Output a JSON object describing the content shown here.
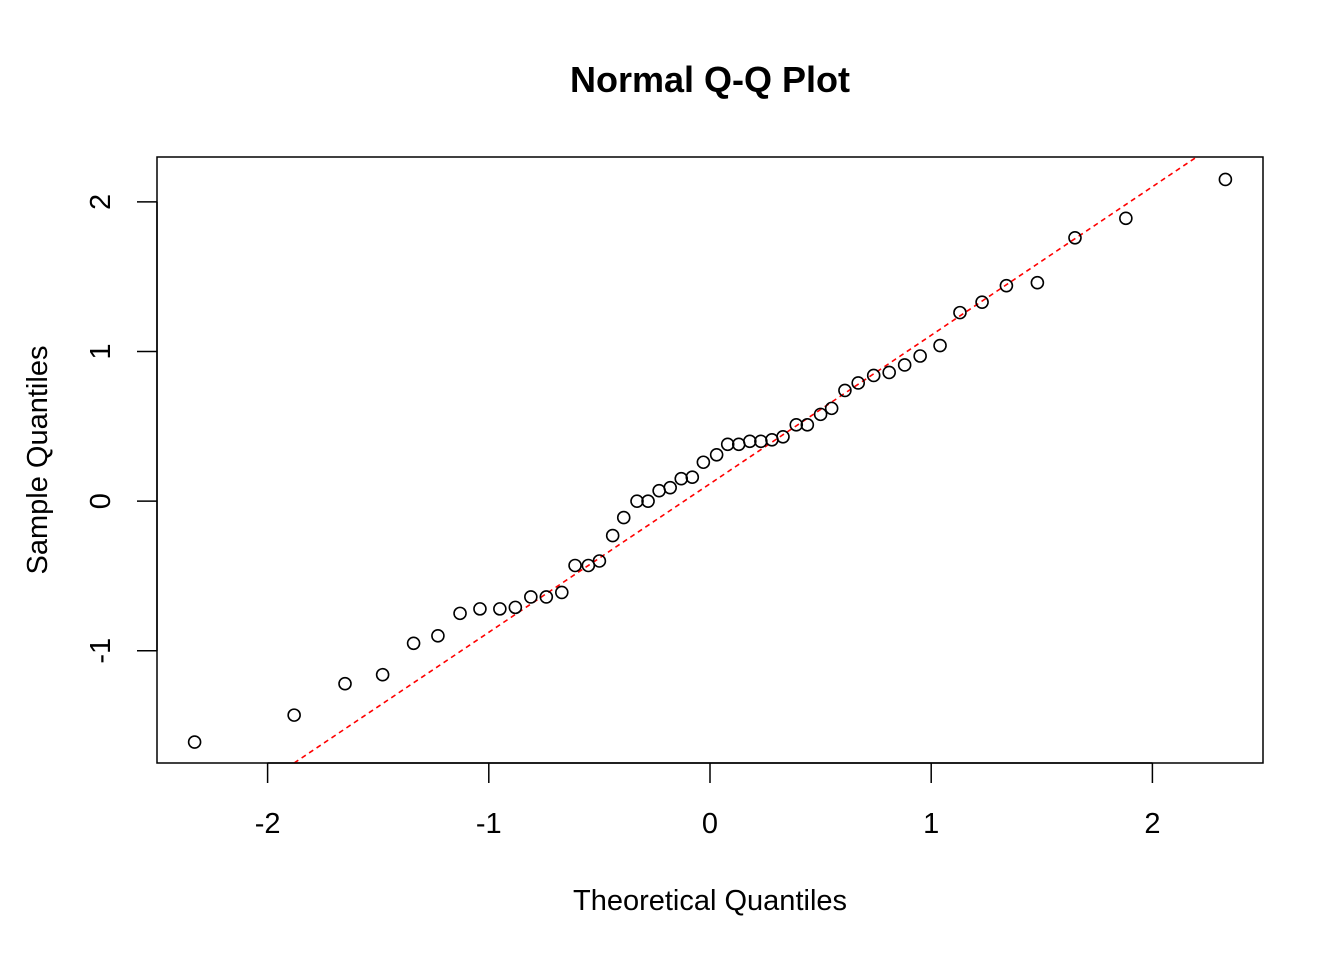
{
  "chart_data": {
    "type": "scatter",
    "title": "Normal Q-Q Plot",
    "xlabel": "Theoretical Quantiles",
    "ylabel": "Sample Quantiles",
    "xlim": [
      -2.5,
      2.5
    ],
    "ylim": [
      -1.75,
      2.3
    ],
    "x_ticks": [
      -2,
      -1,
      0,
      1,
      2
    ],
    "x_tick_labels": [
      "-2",
      "-1",
      "0",
      "1",
      "2"
    ],
    "y_ticks": [
      -1,
      0,
      1,
      2
    ],
    "y_tick_labels": [
      "-1",
      "0",
      "1",
      "2"
    ],
    "grid": false,
    "point_color": "#000000",
    "qq_line": {
      "color": "#ff0000",
      "style": "dashed",
      "points": [
        [
          -1.88,
          -1.75
        ],
        [
          2.2,
          2.3
        ]
      ]
    },
    "series": [
      {
        "x": [
          -2.33,
          -1.88,
          -1.65,
          -1.48,
          -1.34,
          -1.23,
          -1.13,
          -1.04,
          -0.95,
          -0.88,
          -0.81,
          -0.74,
          -0.67,
          -0.61,
          -0.55,
          -0.5,
          -0.44,
          -0.39,
          -0.33,
          -0.28,
          -0.23,
          -0.18,
          -0.13,
          -0.08,
          -0.03,
          0.03,
          0.08,
          0.13,
          0.18,
          0.23,
          0.28,
          0.33,
          0.39,
          0.44,
          0.5,
          0.55,
          0.61,
          0.67,
          0.74,
          0.81,
          0.88,
          0.95,
          1.04,
          1.13,
          1.23,
          1.34,
          1.48,
          1.65,
          1.88,
          2.33
        ],
        "y": [
          -1.61,
          -1.43,
          -1.22,
          -1.16,
          -0.95,
          -0.9,
          -0.75,
          -0.72,
          -0.72,
          -0.71,
          -0.64,
          -0.64,
          -0.61,
          -0.43,
          -0.43,
          -0.4,
          -0.23,
          -0.11,
          0.0,
          0.0,
          0.07,
          0.09,
          0.15,
          0.16,
          0.26,
          0.31,
          0.38,
          0.38,
          0.4,
          0.4,
          0.41,
          0.43,
          0.51,
          0.51,
          0.58,
          0.62,
          0.74,
          0.79,
          0.84,
          0.86,
          0.91,
          0.97,
          1.04,
          1.26,
          1.33,
          1.44,
          1.46,
          1.76,
          1.89,
          2.15
        ]
      }
    ]
  }
}
